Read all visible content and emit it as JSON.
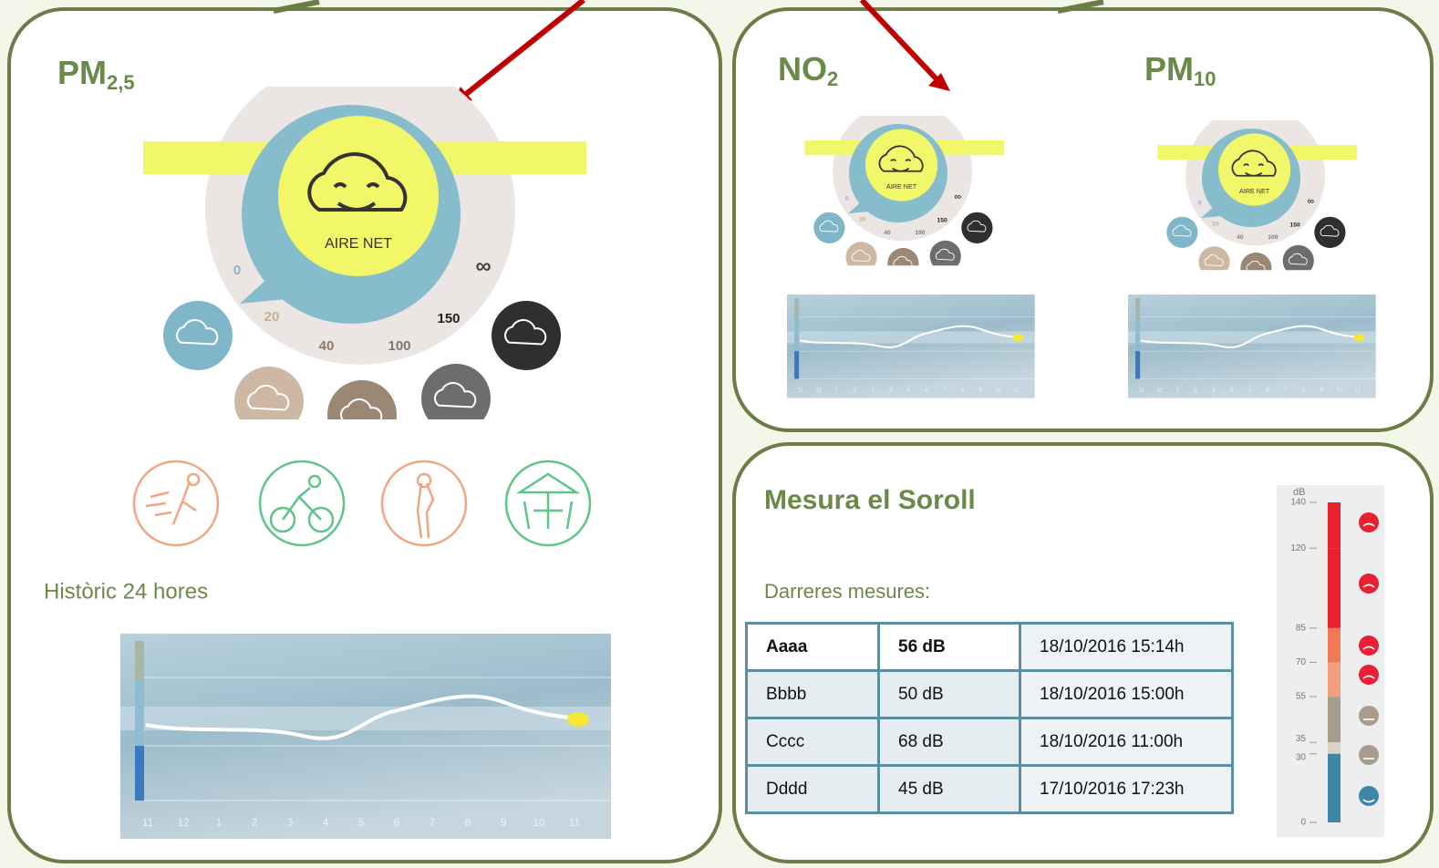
{
  "panels": {
    "pm25": {
      "title": "PM",
      "subscript": "2,5",
      "gauge": {
        "status": "AIRE NET",
        "labels": [
          "0",
          "20",
          "40",
          "100",
          "150",
          "∞"
        ]
      },
      "history_title": "Històric 24 hores",
      "hours": [
        "11",
        "12",
        "1",
        "2",
        "3",
        "4",
        "5",
        "6",
        "7",
        "8",
        "9",
        "10",
        "11"
      ]
    },
    "no2": {
      "title": "NO",
      "subscript": "2",
      "gauge": {
        "status": "AIRE NET",
        "labels": [
          "0",
          "20",
          "40",
          "100",
          "150",
          "∞"
        ]
      },
      "hours": [
        "11",
        "12",
        "1",
        "2",
        "3",
        "4",
        "5",
        "6",
        "7",
        "8",
        "9",
        "10",
        "11"
      ]
    },
    "pm10": {
      "title": "PM",
      "subscript": "10",
      "gauge": {
        "status": "AIRE NET",
        "labels": [
          "0",
          "20",
          "40",
          "100",
          "150",
          "∞"
        ]
      },
      "hours": [
        "11",
        "12",
        "1",
        "2",
        "3",
        "4",
        "5",
        "6",
        "7",
        "8",
        "9",
        "10",
        "11"
      ]
    },
    "noise": {
      "title": "Mesura el Soroll",
      "subtitle": "Darreres mesures:",
      "table": {
        "rows": [
          [
            "Aaaa",
            "56 dB",
            "18/10/2016 15:14h"
          ],
          [
            "Bbbb",
            "50 dB",
            "18/10/2016  15:00h"
          ],
          [
            "Cccc",
            "68 dB",
            "18/10/2016  11:00h"
          ],
          [
            "Dddd",
            "45 dB",
            "17/10/2016 17:23h"
          ]
        ]
      },
      "scale": {
        "unit": "dB",
        "ticks": [
          140,
          120,
          85,
          70,
          55,
          35,
          30,
          0
        ],
        "colors": [
          "#e8202f",
          "#e8202f",
          "#f07a55",
          "#f4a07e",
          "#a89c8c",
          "#d9d2c8",
          "#3f87a6"
        ]
      }
    }
  }
}
